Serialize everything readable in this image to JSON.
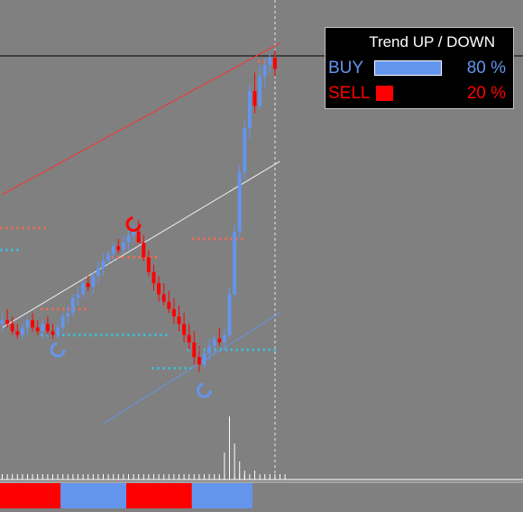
{
  "chart_data": {
    "type": "candlestick",
    "y_range": [
      0,
      100
    ],
    "colors": {
      "background": "#808080",
      "up": "#6495ed",
      "down": "#ff0000",
      "signal_high": "#ff6a4d",
      "signal_low": "#33c8e8",
      "trend_upper": "#ff3030",
      "trend_mid": "#f0f0f0",
      "trend_lower": "#6495ed"
    },
    "candles": [
      {
        "o": 27,
        "h": 30,
        "l": 25,
        "c": 28
      },
      {
        "o": 28,
        "h": 31,
        "l": 26,
        "c": 27
      },
      {
        "o": 27,
        "h": 29,
        "l": 24,
        "c": 25
      },
      {
        "o": 25,
        "h": 27,
        "l": 23,
        "c": 24
      },
      {
        "o": 24,
        "h": 27,
        "l": 23,
        "c": 26
      },
      {
        "o": 26,
        "h": 29,
        "l": 24,
        "c": 28
      },
      {
        "o": 28,
        "h": 30,
        "l": 25,
        "c": 26
      },
      {
        "o": 26,
        "h": 28,
        "l": 24,
        "c": 25
      },
      {
        "o": 25,
        "h": 28,
        "l": 23,
        "c": 27
      },
      {
        "o": 27,
        "h": 29,
        "l": 24,
        "c": 25
      },
      {
        "o": 25,
        "h": 27,
        "l": 23,
        "c": 24
      },
      {
        "o": 24,
        "h": 27,
        "l": 23,
        "c": 26
      },
      {
        "o": 26,
        "h": 30,
        "l": 25,
        "c": 29
      },
      {
        "o": 29,
        "h": 32,
        "l": 27,
        "c": 30
      },
      {
        "o": 30,
        "h": 35,
        "l": 29,
        "c": 34
      },
      {
        "o": 34,
        "h": 37,
        "l": 32,
        "c": 35
      },
      {
        "o": 35,
        "h": 39,
        "l": 34,
        "c": 38
      },
      {
        "o": 38,
        "h": 40,
        "l": 36,
        "c": 37
      },
      {
        "o": 37,
        "h": 41,
        "l": 35,
        "c": 40
      },
      {
        "o": 40,
        "h": 44,
        "l": 38,
        "c": 42
      },
      {
        "o": 42,
        "h": 46,
        "l": 40,
        "c": 44
      },
      {
        "o": 44,
        "h": 47,
        "l": 43,
        "c": 46
      },
      {
        "o": 46,
        "h": 49,
        "l": 44,
        "c": 48
      },
      {
        "o": 48,
        "h": 50,
        "l": 46,
        "c": 47
      },
      {
        "o": 47,
        "h": 51,
        "l": 46,
        "c": 49
      },
      {
        "o": 49,
        "h": 53,
        "l": 47,
        "c": 51
      },
      {
        "o": 51,
        "h": 54,
        "l": 49,
        "c": 52
      },
      {
        "o": 52,
        "h": 55,
        "l": 50,
        "c": 49
      },
      {
        "o": 49,
        "h": 51,
        "l": 44,
        "c": 45
      },
      {
        "o": 45,
        "h": 47,
        "l": 40,
        "c": 41
      },
      {
        "o": 41,
        "h": 43,
        "l": 36,
        "c": 38
      },
      {
        "o": 38,
        "h": 40,
        "l": 33,
        "c": 35
      },
      {
        "o": 35,
        "h": 38,
        "l": 32,
        "c": 33
      },
      {
        "o": 33,
        "h": 36,
        "l": 30,
        "c": 31
      },
      {
        "o": 31,
        "h": 34,
        "l": 27,
        "c": 29
      },
      {
        "o": 29,
        "h": 32,
        "l": 25,
        "c": 27
      },
      {
        "o": 27,
        "h": 30,
        "l": 22,
        "c": 24
      },
      {
        "o": 24,
        "h": 27,
        "l": 20,
        "c": 22
      },
      {
        "o": 22,
        "h": 25,
        "l": 16,
        "c": 18
      },
      {
        "o": 18,
        "h": 21,
        "l": 14,
        "c": 16
      },
      {
        "o": 16,
        "h": 20,
        "l": 15,
        "c": 19
      },
      {
        "o": 19,
        "h": 23,
        "l": 17,
        "c": 21
      },
      {
        "o": 21,
        "h": 24,
        "l": 19,
        "c": 23
      },
      {
        "o": 23,
        "h": 26,
        "l": 21,
        "c": 22
      },
      {
        "o": 22,
        "h": 26,
        "l": 20,
        "c": 24
      },
      {
        "o": 24,
        "h": 37,
        "l": 23,
        "c": 35
      },
      {
        "o": 35,
        "h": 54,
        "l": 34,
        "c": 52
      },
      {
        "o": 52,
        "h": 70,
        "l": 50,
        "c": 68
      },
      {
        "o": 68,
        "h": 82,
        "l": 66,
        "c": 80
      },
      {
        "o": 80,
        "h": 92,
        "l": 77,
        "c": 90
      },
      {
        "o": 90,
        "h": 95,
        "l": 84,
        "c": 86
      },
      {
        "o": 86,
        "h": 97,
        "l": 85,
        "c": 94
      },
      {
        "o": 94,
        "h": 99,
        "l": 91,
        "c": 97
      },
      {
        "o": 97,
        "h": 100,
        "l": 95,
        "c": 99
      },
      {
        "o": 99,
        "h": 101,
        "l": 94,
        "c": 96
      }
    ],
    "signal_lines": [
      {
        "color": "signal_high",
        "y": 53,
        "i0": 0,
        "i1": 9
      },
      {
        "color": "signal_high",
        "y": 45,
        "i0": 22,
        "i1": 31
      },
      {
        "color": "signal_high",
        "y": 31,
        "i0": 8,
        "i1": 17
      },
      {
        "color": "signal_high",
        "y": 50,
        "i0": 38,
        "i1": 48
      },
      {
        "color": "signal_high",
        "y": 98,
        "i0": 51,
        "i1": 54
      },
      {
        "color": "signal_low",
        "y": 47,
        "i0": 0,
        "i1": 3
      },
      {
        "color": "signal_low",
        "y": 24,
        "i0": 8,
        "i1": 33
      },
      {
        "color": "signal_low",
        "y": 15,
        "i0": 30,
        "i1": 37
      },
      {
        "color": "signal_low",
        "y": 20,
        "i0": 37,
        "i1": 54
      }
    ],
    "trend_lines": [
      {
        "color": "trend_upper",
        "x0": 0,
        "y0": 62,
        "x1": 55,
        "y1": 103
      },
      {
        "color": "trend_mid",
        "x0": 0,
        "y0": 26,
        "x1": 55,
        "y1": 71
      },
      {
        "color": "trend_lower",
        "x0": 20,
        "y0": 0,
        "x1": 55,
        "y1": 30
      }
    ],
    "reversal_marks": [
      {
        "type": "sell",
        "i": 26,
        "y": 54
      },
      {
        "type": "buy",
        "i": 11,
        "y": 20
      },
      {
        "type": "buy",
        "i": 40,
        "y": 9
      }
    ],
    "histogram_bars": [
      {
        "i": 44,
        "v": 15
      },
      {
        "i": 45,
        "v": 35
      },
      {
        "i": 46,
        "v": 20
      },
      {
        "i": 47,
        "v": 10
      },
      {
        "i": 48,
        "v": 5
      },
      {
        "i": 50,
        "v": 5
      }
    ],
    "strip_segments": [
      {
        "from": 0,
        "to": 11,
        "trend": "down"
      },
      {
        "from": 12,
        "to": 24,
        "trend": "up"
      },
      {
        "from": 25,
        "to": 37,
        "trend": "down"
      },
      {
        "from": 38,
        "to": 49,
        "trend": "up"
      }
    ]
  },
  "trend_panel": {
    "title": "Trend UP / DOWN",
    "buy_label": "BUY",
    "buy_percent": "80 %",
    "buy_value": 80,
    "buy_color": "#6495ed",
    "sell_label": "SELL",
    "sell_percent": "20 %",
    "sell_value": 20,
    "sell_color": "#ff0000"
  }
}
